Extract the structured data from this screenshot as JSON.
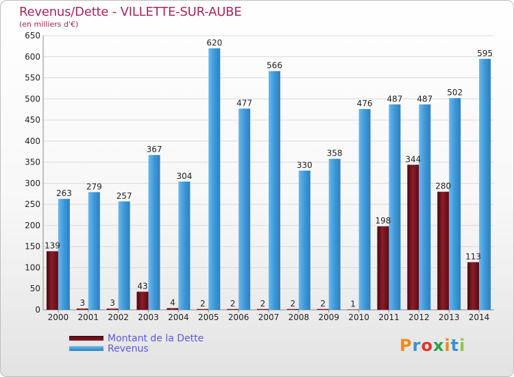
{
  "header": {
    "title": "Revenus/Dette - VILLETTE-SUR-AUBE",
    "subtitle": "(en milliers d'€)"
  },
  "colors": {
    "debt": "#6e0f1a",
    "revenue": "#3e98d8",
    "axis_text": "#222222",
    "grid": "#d9d9d9",
    "title": "#a3265a",
    "legend_text": "#5a5ad8"
  },
  "logo": {
    "text": "Proxiti",
    "icon": "proxiti-logo"
  },
  "chart_data": {
    "type": "bar",
    "title": "Revenus/Dette - VILLETTE-SUR-AUBE",
    "subtitle": "(en milliers d'€)",
    "xlabel": "",
    "ylabel": "",
    "categories": [
      "2000",
      "2001",
      "2002",
      "2003",
      "2004",
      "2005",
      "2006",
      "2007",
      "2008",
      "2009",
      "2010",
      "2011",
      "2012",
      "2013",
      "2014"
    ],
    "series": [
      {
        "name": "Montant de la Dette",
        "values": [
          139,
          3,
          3,
          43,
          4,
          2,
          2,
          2,
          2,
          2,
          1,
          198,
          344,
          280,
          113
        ]
      },
      {
        "name": "Revenus",
        "values": [
          263,
          279,
          257,
          367,
          304,
          620,
          477,
          566,
          330,
          358,
          476,
          487,
          487,
          502,
          595
        ]
      }
    ],
    "ylim": [
      0,
      650
    ],
    "yticks": [
      0,
      50,
      100,
      150,
      200,
      250,
      300,
      350,
      400,
      450,
      500,
      550,
      600,
      650
    ],
    "grid": true,
    "legend_position": "bottom-left"
  }
}
